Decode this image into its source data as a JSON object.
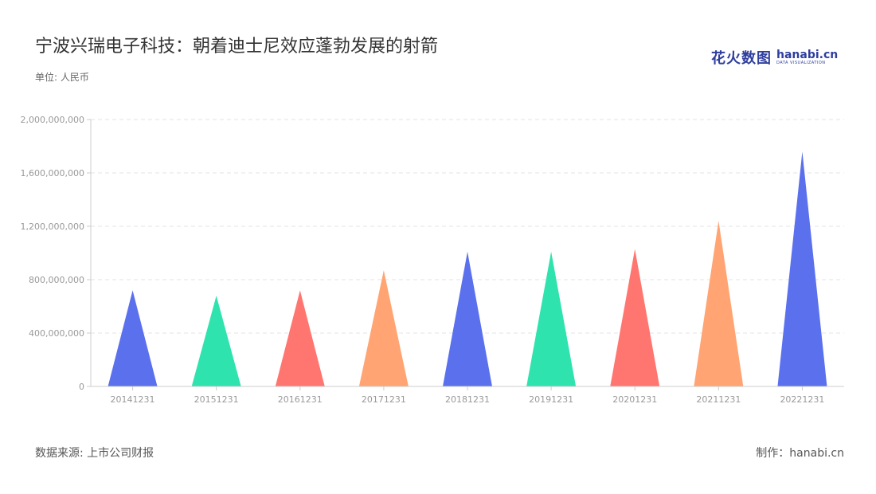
{
  "title": "宁波兴瑞电子科技：朝着迪士尼效应蓬勃发展的射箭",
  "unit_label": "单位: 人民币",
  "logo": {
    "cn": "花火数图",
    "en": "hanabi.cn",
    "en_sub": "DATA VISUALIZATION"
  },
  "source": "数据来源: 上市公司财报",
  "maker": "制作：hanabi.cn",
  "colors": {
    "blue": "#5a70ed",
    "green": "#2fe3ae",
    "red": "#ff7670",
    "orange": "#ffa472",
    "grid": "#e3e3e3",
    "axis": "#cccccc"
  },
  "chart_data": {
    "type": "bar",
    "categories": [
      "20141231",
      "20151231",
      "20161231",
      "20171231",
      "20181231",
      "20191231",
      "20201231",
      "20211231",
      "20221231"
    ],
    "values": [
      720000000,
      680000000,
      720000000,
      870000000,
      1010000000,
      1010000000,
      1030000000,
      1240000000,
      1760000000
    ],
    "bar_colors": [
      "#5a70ed",
      "#2fe3ae",
      "#ff7670",
      "#ffa472",
      "#5a70ed",
      "#2fe3ae",
      "#ff7670",
      "#ffa472",
      "#5a70ed"
    ],
    "ylim": [
      0,
      2000000000
    ],
    "yticks": [
      0,
      400000000,
      800000000,
      1200000000,
      1600000000,
      2000000000
    ],
    "ytick_labels": [
      "0",
      "400,000,000",
      "800,000,000",
      "1,200,000,000",
      "1,600,000,000",
      "2,000,000,000"
    ],
    "grid": "horizontal dashed",
    "legend": "none"
  }
}
